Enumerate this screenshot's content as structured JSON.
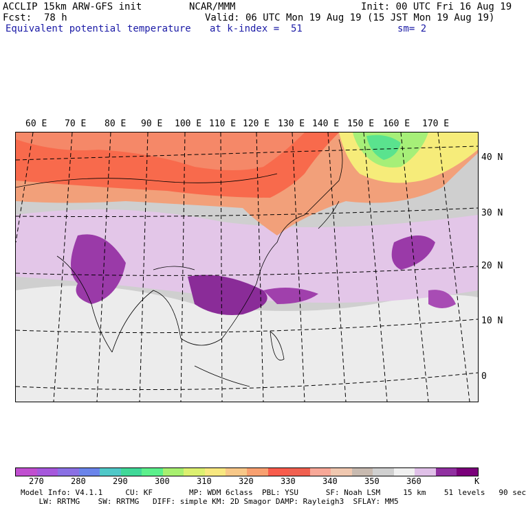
{
  "header": {
    "model": "ACCLIP 15km ARW-GFS init",
    "org": "NCAR/MMM",
    "init": "Init: 00 UTC Fri 16 Aug 19",
    "fcst_label": "Fcst:",
    "fcst_value": "78 h",
    "valid": "Valid: 06 UTC Mon 19 Aug 19 (15 JST Mon 19 Aug 19)",
    "field": "Equivalent potential temperature",
    "level": "at k-index =  51",
    "smooth": "sm= 2"
  },
  "map": {
    "lon_labels": [
      "60 E",
      "70 E",
      "80 E",
      "90 E",
      "100 E",
      "110 E",
      "120 E",
      "130 E",
      "140 E",
      "150 E",
      "160 E",
      "170 E"
    ],
    "lat_labels": [
      "40 N",
      "30 N",
      "20 N",
      "10 N",
      "0"
    ]
  },
  "colorbar": {
    "colors": [
      "#c04fd0",
      "#a658dc",
      "#8a70e4",
      "#6a84ea",
      "#4fc8c8",
      "#40d898",
      "#5cf08c",
      "#a8f070",
      "#dcf070",
      "#f8e880",
      "#f8c888",
      "#f8a070",
      "#f85c4c",
      "#f06050",
      "#f8a898",
      "#f0c8b0",
      "#c8bab0",
      "#d0d0d0",
      "#f0f0f0",
      "#e0c0e8",
      "#9030a0",
      "#7a007a"
    ],
    "ticks": [
      "270",
      "280",
      "290",
      "300",
      "310",
      "320",
      "330",
      "340",
      "350",
      "360"
    ],
    "unit": "K"
  },
  "model_info": {
    "line1": "Model Info: V4.1.1     CU: KF        MP: WDM 6class  PBL: YSU      SF: Noah LSM     15 km    51 levels   90 sec",
    "line2": "    LW: RRTMG    SW: RRTMG   DIFF: simple KM: 2D Smagor DAMP: Rayleigh3  SFLAY: MM5"
  }
}
